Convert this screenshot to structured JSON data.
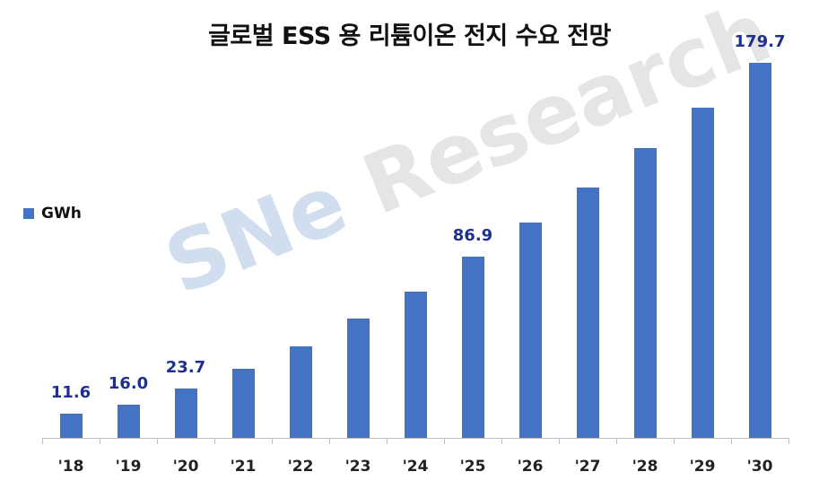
{
  "chart_data": {
    "type": "bar",
    "title": "글로벌 ESS 용 리튬이온 전지 수요 전망",
    "xlabel": "",
    "ylabel": "",
    "legend": {
      "entries": [
        "GWh"
      ],
      "position": "left"
    },
    "grid": false,
    "ylim": [
      0,
      180
    ],
    "categories": [
      "'18",
      "'19",
      "'20",
      "'21",
      "'22",
      "'23",
      "'24",
      "'25",
      "'26",
      "'27",
      "'28",
      "'29",
      "'30"
    ],
    "series": [
      {
        "name": "GWh",
        "color": "#4472C4",
        "values": [
          11.6,
          16.0,
          23.7,
          33,
          44,
          57,
          70,
          86.9,
          103,
          120,
          139,
          158,
          179.7
        ]
      }
    ],
    "data_labels": {
      "0": "11.6",
      "1": "16.0",
      "2": "23.7",
      "7": "86.9",
      "12": "179.7"
    },
    "label_color": "#1F2F8F",
    "watermark": "SNe Research"
  }
}
